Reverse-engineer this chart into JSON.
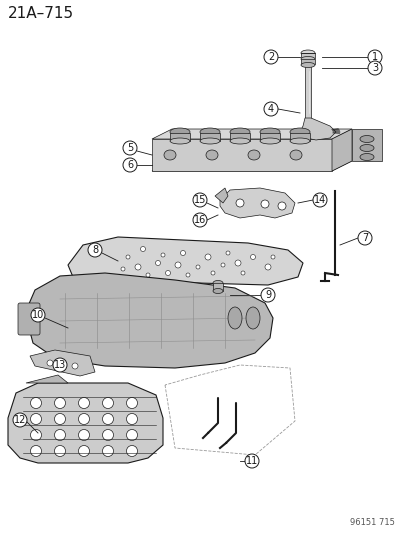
{
  "title": "21A–715",
  "watermark": "96151 715",
  "bg_color": "#ffffff",
  "line_color": "#1a1a1a",
  "fig_width": 4.14,
  "fig_height": 5.33,
  "dpi": 100,
  "title_fontsize": 11,
  "label_fontsize": 7,
  "watermark_fontsize": 6
}
